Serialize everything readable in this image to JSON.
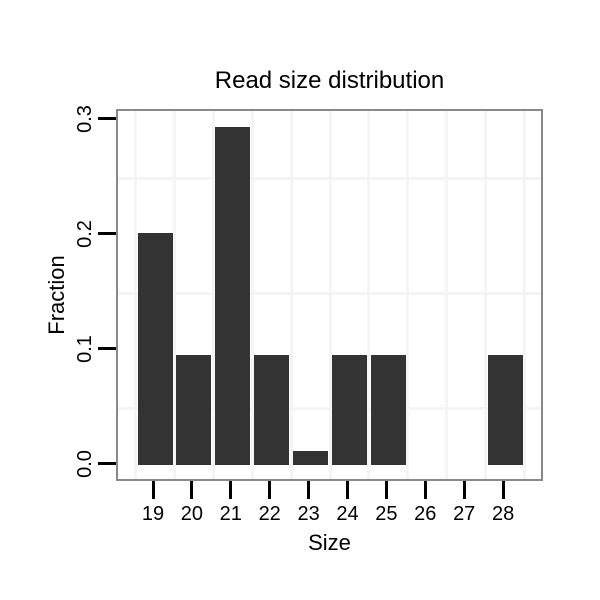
{
  "chart_data": {
    "type": "bar",
    "title": "Read size distribution",
    "xlabel": "Size",
    "ylabel": "Fraction",
    "categories": [
      "19",
      "20",
      "21",
      "22",
      "23",
      "24",
      "25",
      "26",
      "27",
      "28"
    ],
    "values": [
      0.202,
      0.096,
      0.294,
      0.096,
      0.013,
      0.096,
      0.096,
      0,
      0,
      0.096
    ],
    "ylim": [
      -0.015,
      0.309
    ],
    "yticks": [
      0.0,
      0.1,
      0.2,
      0.3
    ],
    "ytick_labels": [
      "0.0",
      "0.1",
      "0.2",
      "0.3"
    ],
    "ygrid_minor": [
      0.05,
      0.15,
      0.25
    ],
    "grid": "minor gridlines only, no major gridlines",
    "legend": "none",
    "bar_color": "#333333",
    "panel_border_color": "#898989",
    "gridline_color": "#f5f5f5",
    "tick_color": "#000000",
    "text_color": "#000000",
    "background": "#ffffff"
  }
}
